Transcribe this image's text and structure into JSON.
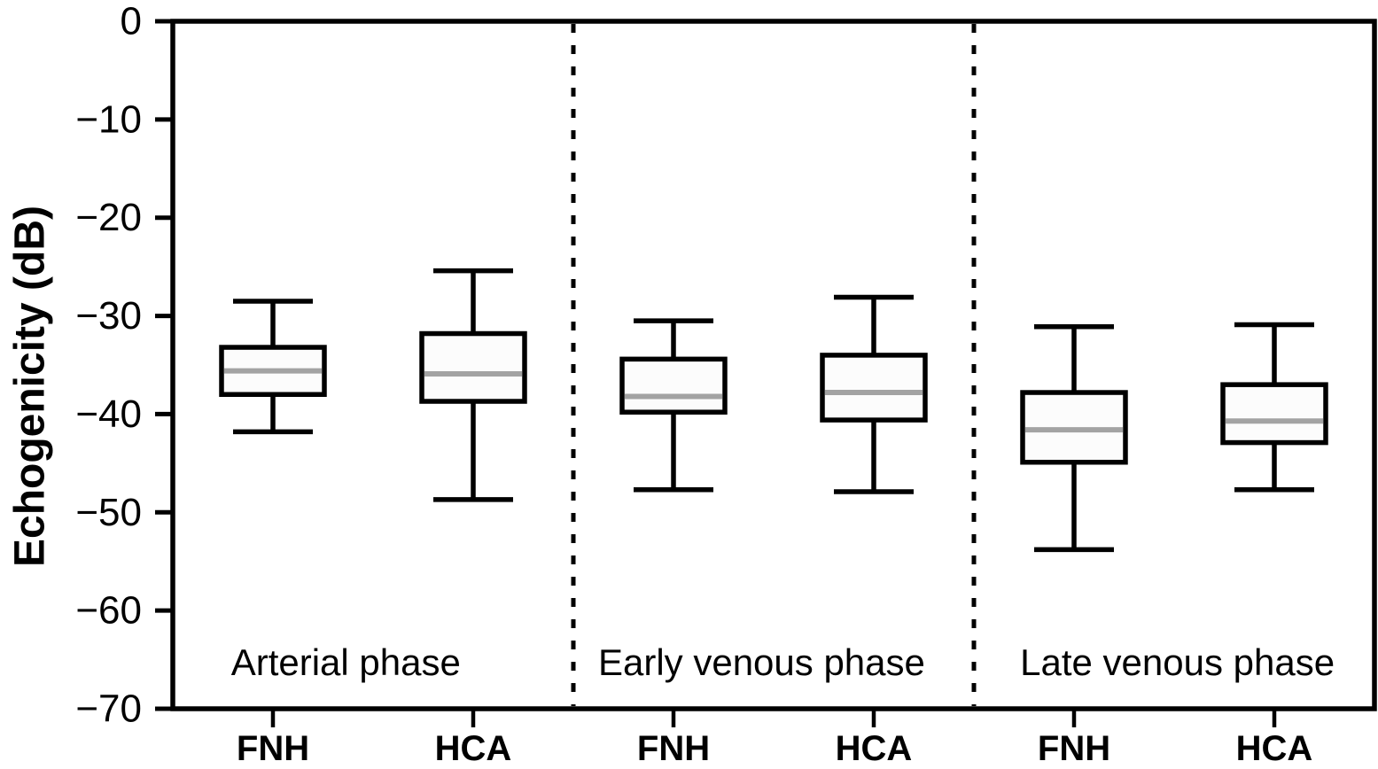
{
  "figure": {
    "background": "#ffffff",
    "colors": {
      "line": "#000000",
      "median_line": "#a3a3a3",
      "box_fill": "#fcfcfc",
      "separator": "#000000"
    }
  },
  "chart_data": {
    "type": "boxplot",
    "title": "",
    "ylabel": "Echogenicity (dB)",
    "xlabel": "",
    "y_unit": "dB",
    "ylim": [
      -70,
      0
    ],
    "grid": "off",
    "legend": "none",
    "y_ticks": [
      0,
      -10,
      -20,
      -30,
      -40,
      -50,
      -60,
      -70
    ],
    "y_tick_labels": [
      "0",
      "−10",
      "−20",
      "−30",
      "−40",
      "−50",
      "−60",
      "−70"
    ],
    "series_labels": [
      "FNH",
      "HCA"
    ],
    "group_separator_style": "dotted-vertical-line",
    "groups": [
      {
        "label": "Arterial phase",
        "boxes": [
          {
            "series": "FNH",
            "whisker_low": -41.8,
            "q1": -38.0,
            "median": -35.6,
            "q3": -33.2,
            "whisker_high": -28.5
          },
          {
            "series": "HCA",
            "whisker_low": -48.7,
            "q1": -38.7,
            "median": -35.9,
            "q3": -31.8,
            "whisker_high": -25.4
          }
        ]
      },
      {
        "label": "Early venous phase",
        "boxes": [
          {
            "series": "FNH",
            "whisker_low": -47.7,
            "q1": -39.8,
            "median": -38.2,
            "q3": -34.4,
            "whisker_high": -30.5
          },
          {
            "series": "HCA",
            "whisker_low": -47.9,
            "q1": -40.6,
            "median": -37.8,
            "q3": -34.0,
            "whisker_high": -28.1
          }
        ]
      },
      {
        "label": "Late venous phase",
        "boxes": [
          {
            "series": "FNH",
            "whisker_low": -53.8,
            "q1": -44.9,
            "median": -41.6,
            "q3": -37.8,
            "whisker_high": -31.1
          },
          {
            "series": "HCA",
            "whisker_low": -47.7,
            "q1": -42.9,
            "median": -40.7,
            "q3": -37.0,
            "whisker_high": -30.9
          }
        ]
      }
    ]
  }
}
